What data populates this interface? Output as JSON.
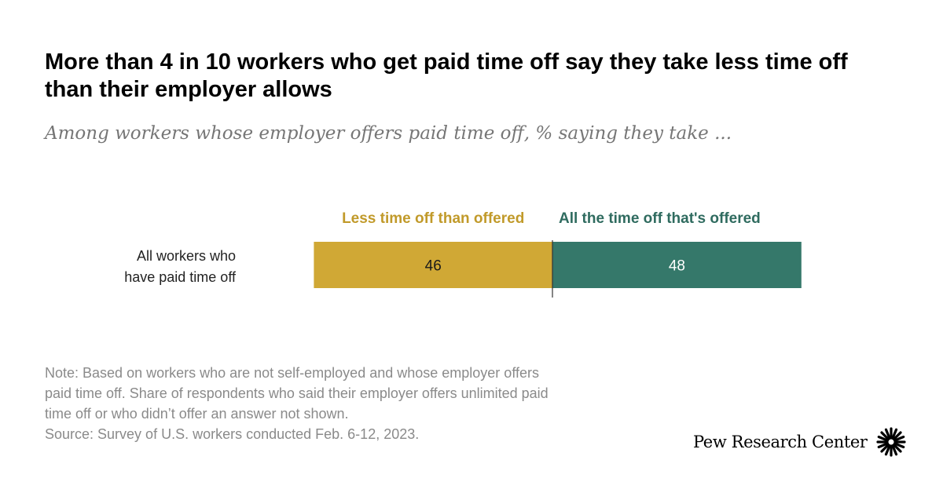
{
  "title": "More than 4 in 10 workers who get paid time off say they take less time off than their employer allows",
  "subtitle": "Among workers whose employer offers paid time off, % saying they take ...",
  "chart_data": {
    "type": "bar",
    "orientation": "horizontal",
    "stacked": true,
    "categories": [
      "All workers who have paid time off"
    ],
    "series": [
      {
        "name": "Less time off than offered",
        "values": [
          46
        ],
        "color": "#d0a835"
      },
      {
        "name": "All the time off that's offered",
        "values": [
          48
        ],
        "color": "#35786a"
      }
    ],
    "legend_placement": "top",
    "grid": false
  },
  "colors": {
    "series_1_label": "#c19a2a",
    "series_2_label": "#2f6b5f"
  },
  "notes": {
    "note_lines": [
      "Note: Based on workers who are not self-employed and whose employer offers",
      "paid time off. Share of respondents who said their employer offers unlimited paid",
      "time off or who didn’t offer an answer not shown."
    ],
    "source": "Source: Survey of U.S. workers conducted Feb. 6-12, 2023."
  },
  "brand": {
    "name": "Pew Research Center",
    "icon": "pew-sunburst-icon"
  }
}
